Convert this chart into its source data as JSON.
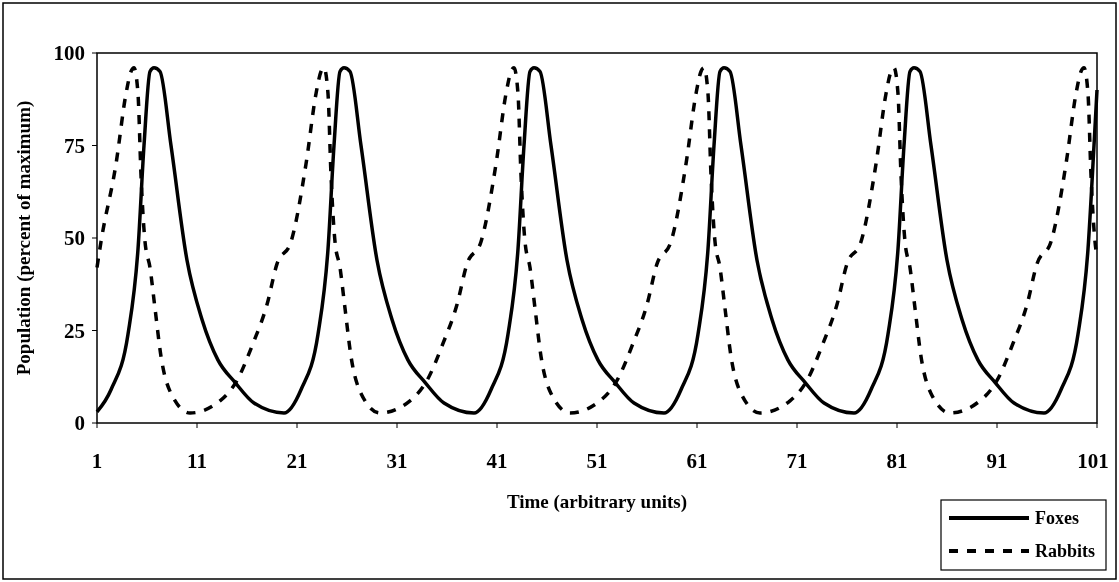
{
  "chart_data": {
    "type": "line",
    "xlabel": "Time (arbitrary units)",
    "ylabel": "Population (percent of maximum)",
    "xlim": [
      1,
      101
    ],
    "xticks": [
      1,
      11,
      21,
      31,
      41,
      51,
      61,
      71,
      81,
      91,
      101
    ],
    "ylim": [
      0,
      100
    ],
    "yticks": [
      0,
      25,
      50,
      75,
      100
    ],
    "legend": "bottom right",
    "series": [
      {
        "name": "Foxes",
        "color": "#000000",
        "line_style": "solid",
        "x": [
          1,
          2.4,
          4.1,
          5.1,
          5.7,
          6.3,
          6.7,
          7.3,
          8.4,
          10,
          11.5,
          13.1,
          14.8,
          16.7,
          19.7,
          21.4,
          23.1,
          24.1,
          24.7,
          25.3,
          25.7,
          26.3,
          27.4,
          29,
          30.5,
          32.1,
          33.8,
          35.7,
          38.7,
          40.4,
          42.1,
          43.1,
          43.7,
          44.3,
          44.7,
          45.3,
          46.4,
          48,
          49.5,
          51.1,
          52.8,
          54.7,
          57.7,
          59.4,
          61.1,
          62.1,
          62.7,
          63.3,
          63.7,
          64.3,
          65.4,
          67,
          68.5,
          70.1,
          71.8,
          73.7,
          76.7,
          78.4,
          80.1,
          81.1,
          81.7,
          82.3,
          82.7,
          83.3,
          84.4,
          86,
          87.5,
          89.1,
          90.8,
          92.7,
          95.7,
          97.4,
          99.1,
          100.1,
          100.7,
          101
        ],
        "values": [
          3,
          9,
          24,
          47,
          75,
          95,
          96,
          95,
          75,
          44,
          28,
          17,
          11,
          5.4,
          2.7,
          9,
          24,
          47,
          75,
          95,
          96,
          95,
          75,
          44,
          28,
          17,
          11,
          5.4,
          2.7,
          9,
          24,
          47,
          75,
          95,
          96,
          95,
          75,
          44,
          28,
          17,
          11,
          5.4,
          2.7,
          9,
          24,
          47,
          75,
          95,
          96,
          95,
          75,
          44,
          28,
          17,
          11,
          5.4,
          2.7,
          9,
          24,
          47,
          75,
          95,
          96,
          95,
          75,
          44,
          28,
          17,
          11,
          5.4,
          2.7,
          9,
          24,
          47,
          75,
          90
        ]
      },
      {
        "name": "Rabbits",
        "color": "#000000",
        "line_style": "dashed",
        "x": [
          1,
          1.4,
          2.9,
          3.9,
          4.4,
          4.7,
          5.1,
          5.4,
          5.8,
          6.3,
          6.8,
          7.4,
          8.4,
          10.3,
          13.3,
          15,
          16.6,
          18,
          19,
          20.4,
          21.9,
          22.9,
          23.4,
          23.7,
          24.1,
          24.4,
          24.8,
          25.3,
          25.8,
          26.4,
          27.4,
          29.3,
          32.3,
          34,
          35.6,
          37,
          38,
          39.4,
          40.9,
          41.9,
          42.4,
          42.7,
          43.1,
          43.4,
          43.8,
          44.3,
          44.8,
          45.4,
          46.4,
          48.3,
          51.3,
          53,
          54.6,
          56,
          57,
          58.4,
          59.9,
          60.9,
          61.4,
          61.7,
          62.1,
          62.4,
          62.8,
          63.3,
          63.8,
          64.4,
          65.4,
          67.3,
          70.3,
          72,
          73.6,
          75,
          76,
          77.4,
          78.9,
          79.9,
          80.4,
          80.7,
          81.1,
          81.4,
          81.8,
          82.3,
          82.8,
          83.4,
          84.4,
          86.3,
          89.3,
          91,
          92.6,
          94,
          95,
          96.4,
          97.9,
          98.9,
          99.4,
          99.7,
          100.1,
          100.4,
          100.8,
          101
        ],
        "values": [
          42,
          49,
          70,
          89,
          95,
          96,
          89,
          67,
          49,
          42,
          31,
          18,
          8,
          2.7,
          6,
          11.5,
          21.5,
          32,
          43,
          49,
          70,
          89,
          95,
          96,
          89,
          67,
          49,
          42,
          31,
          18,
          8,
          2.7,
          6,
          11.5,
          21.5,
          32,
          43,
          49,
          70,
          89,
          95,
          96,
          89,
          67,
          49,
          42,
          31,
          18,
          8,
          2.7,
          6,
          11.5,
          21.5,
          32,
          43,
          49,
          70,
          89,
          95,
          96,
          89,
          67,
          49,
          42,
          31,
          18,
          8,
          2.7,
          6,
          11.5,
          21.5,
          32,
          43,
          49,
          70,
          89,
          95,
          96,
          89,
          67,
          49,
          42,
          31,
          18,
          8,
          2.7,
          6,
          11.5,
          21.5,
          32,
          43,
          49,
          70,
          89,
          95,
          96,
          89,
          67,
          49,
          45
        ]
      }
    ]
  }
}
